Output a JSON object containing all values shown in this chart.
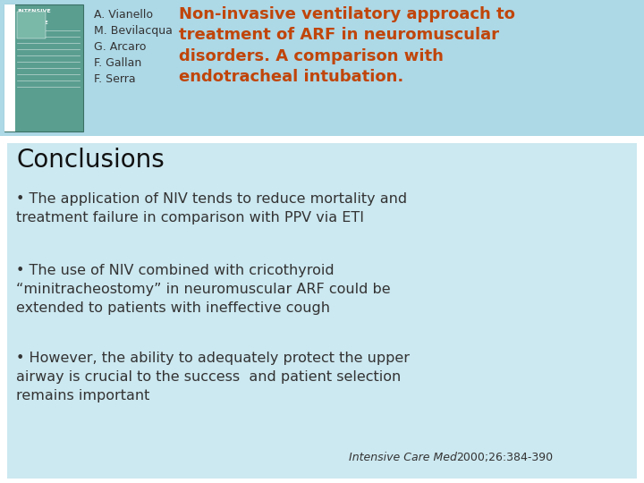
{
  "bg_color": "#ffffff",
  "header_bg": "#add8e6",
  "conclusions_bg": "#cce8f0",
  "title_text": "Non-invasive ventilatory approach to\ntreatment of ARF in neuromuscular\ndisorders. A comparison with\nendotracheal intubation.",
  "title_color": "#c0450a",
  "authors_lines": [
    "A. Vianello",
    "M. Bevilacqua",
    "G. Arcaro",
    "F. Gallan",
    "F. Serra"
  ],
  "authors_color": "#333333",
  "conclusions_title": "Conclusions",
  "conclusions_title_color": "#111111",
  "bullet1_line1": "• The application of NIV tends to reduce mortality and",
  "bullet1_line2": "treatment failure in comparison with PPV via ETI",
  "bullet2_line1": "• The use of NIV combined with cricothyroid",
  "bullet2_line2": "“minitracheostomy” in neuromuscular ARF could be",
  "bullet2_line3": "extended to patients with ineffective cough",
  "bullet3_line1": "• However, the ability to adequately protect the upper",
  "bullet3_line2": "airway is crucial to the success  and patient selection",
  "bullet3_line3": "remains important",
  "citation_italic": "Intensive Care Med",
  "citation_normal": "2000;26:384-390",
  "text_color": "#333333",
  "book_bg": "#5a9e90",
  "book_text_color": "#ffffff"
}
